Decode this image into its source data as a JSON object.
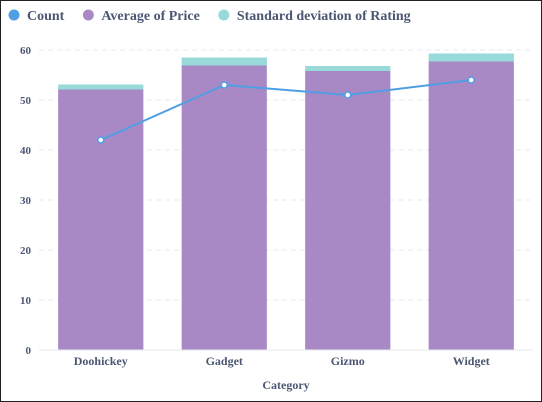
{
  "chart_data": {
    "type": "bar",
    "categories": [
      "Doohickey",
      "Gadget",
      "Gizmo",
      "Widget"
    ],
    "series": [
      {
        "name": "Count",
        "kind": "line",
        "color": "#509ee3",
        "values": [
          42,
          53,
          51,
          54
        ]
      },
      {
        "name": "Average of Price",
        "kind": "bar",
        "stack": "main",
        "color": "#a989c5",
        "values": [
          52.1,
          56.9,
          55.8,
          57.7
        ]
      },
      {
        "name": "Standard deviation of Rating",
        "kind": "bar",
        "stack": "main",
        "color": "#98d9d9",
        "values": [
          1.0,
          1.6,
          1.0,
          1.6
        ]
      }
    ],
    "xlabel": "Category",
    "ylabel": "",
    "ylim": [
      0,
      60
    ],
    "yticks": [
      0,
      10,
      20,
      30,
      40,
      50,
      60
    ],
    "grid": true,
    "legend_position": "top-left"
  }
}
